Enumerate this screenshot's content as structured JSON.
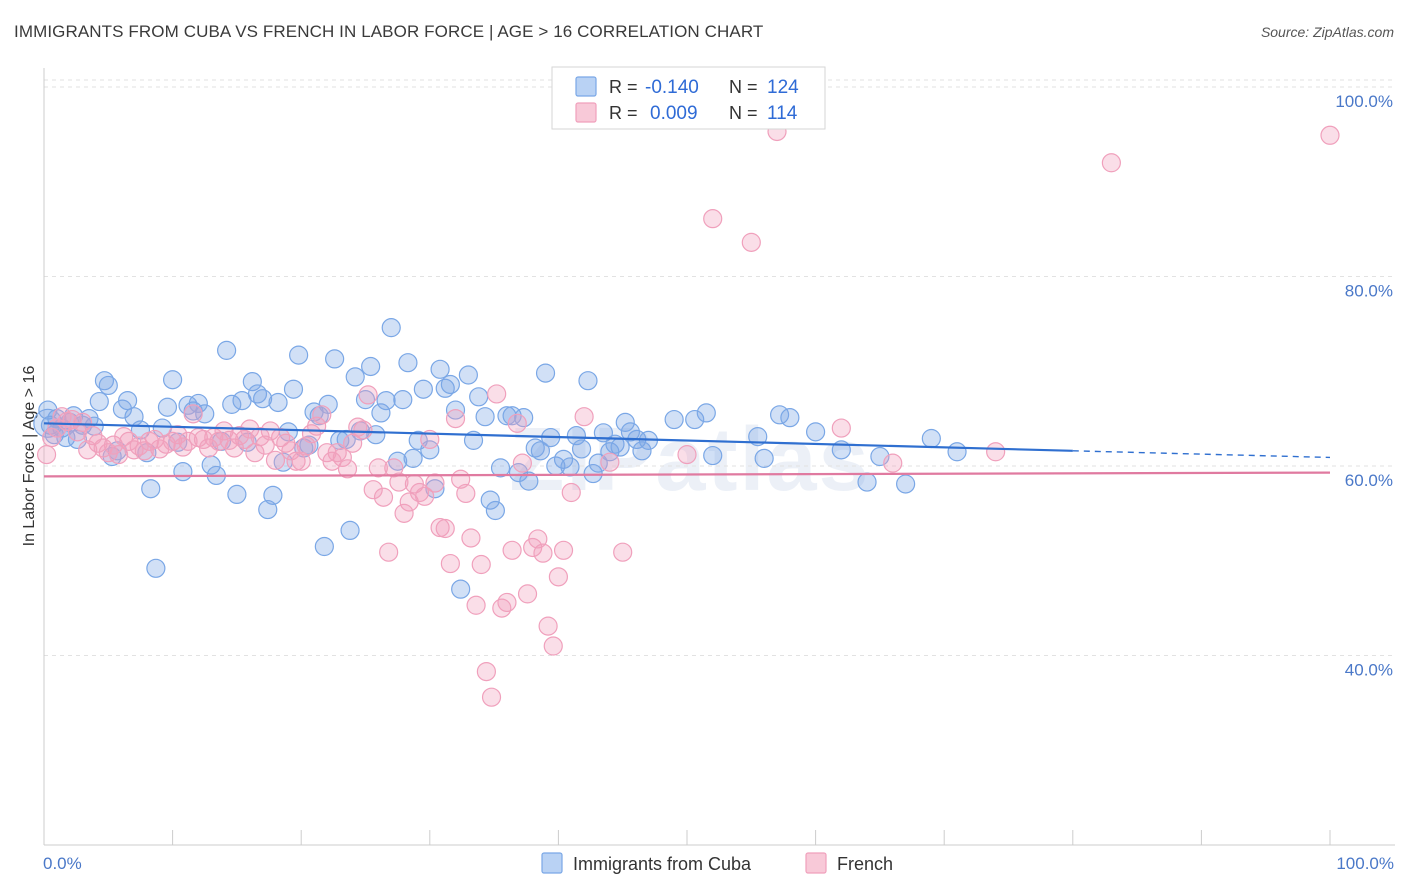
{
  "title": "IMMIGRANTS FROM CUBA VS FRENCH IN LABOR FORCE | AGE > 16 CORRELATION CHART",
  "source": "Source: ZipAtlas.com",
  "watermark": "ZIPatlas",
  "chart_data": {
    "type": "scatter",
    "title": "IMMIGRANTS FROM CUBA VS FRENCH IN LABOR FORCE | AGE > 16 CORRELATION CHART",
    "xlabel": "",
    "ylabel": "In Labor Force | Age > 16",
    "xlim": [
      0,
      100
    ],
    "ylim": [
      20,
      102
    ],
    "x_tick_labels": [
      "0.0%",
      "100.0%"
    ],
    "y_ticks": [
      40,
      60,
      80,
      100
    ],
    "y_tick_labels": [
      "40.0%",
      "60.0%",
      "80.0%",
      "100.0%"
    ],
    "grid": true,
    "legend_placement": "top-center",
    "legend": [
      {
        "r_label": "R =",
        "r_value": "-0.140",
        "n_label": "N =",
        "n_value": "124"
      },
      {
        "r_label": "R =",
        "r_value": "0.009",
        "n_label": "N =",
        "n_value": "114"
      }
    ],
    "series": [
      {
        "name": "Immigrants from Cuba",
        "color": "#7aa7e6",
        "line_color": "#2f6fd0",
        "trend": {
          "x": [
            0,
            80,
            100
          ],
          "y": [
            64.5,
            61.6,
            60.9
          ],
          "solid_until": 80
        },
        "points": [
          [
            0.3,
            65.9
          ],
          [
            0.5,
            64.3
          ],
          [
            0.8,
            63.3
          ],
          [
            1.0,
            65.0
          ],
          [
            1.4,
            64.0
          ],
          [
            1.7,
            63.0
          ],
          [
            2.0,
            64.6
          ],
          [
            2.3,
            65.3
          ],
          [
            2.6,
            62.8
          ],
          [
            3.0,
            64.3
          ],
          [
            3.5,
            65.0
          ],
          [
            3.9,
            64.2
          ],
          [
            4.3,
            66.8
          ],
          [
            4.7,
            69.0
          ],
          [
            5.0,
            68.5
          ],
          [
            5.3,
            61.0
          ],
          [
            5.7,
            61.6
          ],
          [
            6.1,
            66.0
          ],
          [
            6.5,
            66.9
          ],
          [
            7.0,
            65.2
          ],
          [
            7.5,
            63.8
          ],
          [
            8.0,
            61.4
          ],
          [
            8.3,
            57.6
          ],
          [
            8.7,
            49.2
          ],
          [
            9.2,
            64.0
          ],
          [
            9.6,
            66.2
          ],
          [
            10.0,
            69.1
          ],
          [
            10.4,
            62.5
          ],
          [
            10.8,
            59.4
          ],
          [
            11.2,
            66.4
          ],
          [
            11.6,
            65.8
          ],
          [
            12.0,
            66.6
          ],
          [
            12.5,
            65.5
          ],
          [
            13.0,
            60.1
          ],
          [
            13.4,
            59.0
          ],
          [
            13.8,
            62.6
          ],
          [
            14.2,
            72.2
          ],
          [
            14.6,
            66.5
          ],
          [
            15.0,
            57.0
          ],
          [
            15.4,
            66.9
          ],
          [
            15.8,
            62.5
          ],
          [
            16.2,
            68.9
          ],
          [
            16.6,
            67.6
          ],
          [
            17.0,
            67.1
          ],
          [
            17.4,
            55.4
          ],
          [
            17.8,
            56.9
          ],
          [
            18.2,
            66.7
          ],
          [
            18.6,
            60.4
          ],
          [
            19.0,
            63.6
          ],
          [
            19.4,
            68.1
          ],
          [
            19.8,
            71.7
          ],
          [
            20.2,
            61.9
          ],
          [
            20.6,
            62.2
          ],
          [
            21.0,
            65.7
          ],
          [
            21.4,
            65.3
          ],
          [
            21.8,
            51.5
          ],
          [
            22.1,
            66.5
          ],
          [
            22.6,
            71.3
          ],
          [
            23.0,
            62.7
          ],
          [
            23.5,
            62.8
          ],
          [
            23.8,
            53.2
          ],
          [
            24.2,
            69.4
          ],
          [
            24.6,
            63.7
          ],
          [
            25.0,
            67.0
          ],
          [
            25.4,
            70.5
          ],
          [
            25.8,
            63.3
          ],
          [
            26.2,
            65.6
          ],
          [
            26.6,
            66.9
          ],
          [
            27.0,
            74.6
          ],
          [
            27.5,
            60.5
          ],
          [
            27.9,
            67.0
          ],
          [
            28.3,
            70.9
          ],
          [
            28.7,
            60.8
          ],
          [
            29.1,
            62.7
          ],
          [
            29.5,
            68.1
          ],
          [
            30.0,
            61.7
          ],
          [
            30.4,
            57.6
          ],
          [
            30.8,
            70.2
          ],
          [
            31.2,
            68.2
          ],
          [
            31.6,
            68.6
          ],
          [
            32.0,
            65.9
          ],
          [
            32.4,
            47.0
          ],
          [
            33.0,
            69.6
          ],
          [
            33.4,
            62.7
          ],
          [
            33.8,
            67.3
          ],
          [
            34.3,
            65.2
          ],
          [
            34.7,
            56.4
          ],
          [
            35.1,
            55.3
          ],
          [
            35.5,
            59.8
          ],
          [
            36.0,
            65.3
          ],
          [
            36.4,
            65.3
          ],
          [
            36.9,
            59.3
          ],
          [
            37.3,
            65.1
          ],
          [
            37.7,
            58.4
          ],
          [
            38.2,
            61.9
          ],
          [
            38.6,
            61.6
          ],
          [
            39.0,
            69.8
          ],
          [
            39.4,
            63.0
          ],
          [
            39.8,
            60.0
          ],
          [
            40.4,
            60.7
          ],
          [
            40.9,
            59.9
          ],
          [
            41.4,
            63.2
          ],
          [
            41.8,
            61.8
          ],
          [
            42.3,
            69.0
          ],
          [
            42.7,
            59.2
          ],
          [
            43.1,
            60.3
          ],
          [
            43.5,
            63.5
          ],
          [
            44.0,
            61.5
          ],
          [
            44.4,
            62.3
          ],
          [
            44.8,
            62.0
          ],
          [
            45.2,
            64.6
          ],
          [
            45.6,
            63.6
          ],
          [
            46.1,
            62.8
          ],
          [
            46.5,
            61.6
          ],
          [
            47.0,
            62.7
          ],
          [
            49.0,
            64.9
          ],
          [
            50.6,
            64.9
          ],
          [
            51.5,
            65.6
          ],
          [
            52.0,
            61.1
          ],
          [
            55.5,
            63.1
          ],
          [
            56.0,
            60.8
          ],
          [
            57.2,
            65.4
          ],
          [
            58.0,
            65.1
          ],
          [
            60.0,
            63.6
          ],
          [
            62.0,
            61.7
          ],
          [
            64.0,
            58.3
          ],
          [
            65.0,
            61.0
          ],
          [
            67.0,
            58.1
          ],
          [
            69.0,
            62.9
          ],
          [
            71.0,
            61.5
          ]
        ]
      },
      {
        "name": "French",
        "color": "#f0a0bc",
        "line_color": "#e07aa0",
        "trend": {
          "x": [
            0,
            100
          ],
          "y": [
            58.9,
            59.3
          ],
          "solid_until": 100
        },
        "points": [
          [
            0.2,
            61.2
          ],
          [
            0.6,
            63.0
          ],
          [
            1.0,
            64.0
          ],
          [
            1.4,
            65.2
          ],
          [
            1.8,
            64.7
          ],
          [
            2.2,
            64.9
          ],
          [
            2.6,
            63.6
          ],
          [
            3.0,
            64.6
          ],
          [
            3.4,
            61.7
          ],
          [
            3.8,
            63.2
          ],
          [
            4.2,
            62.4
          ],
          [
            4.6,
            61.9
          ],
          [
            5.0,
            61.4
          ],
          [
            5.4,
            62.2
          ],
          [
            5.8,
            61.2
          ],
          [
            6.2,
            63.1
          ],
          [
            6.6,
            62.6
          ],
          [
            7.0,
            61.7
          ],
          [
            7.4,
            62.1
          ],
          [
            7.8,
            61.6
          ],
          [
            8.2,
            62.6
          ],
          [
            8.6,
            62.8
          ],
          [
            9.0,
            61.8
          ],
          [
            9.5,
            62.3
          ],
          [
            10.0,
            62.6
          ],
          [
            10.4,
            63.3
          ],
          [
            10.8,
            62.0
          ],
          [
            11.2,
            62.6
          ],
          [
            11.6,
            65.5
          ],
          [
            12.0,
            63.0
          ],
          [
            12.4,
            62.8
          ],
          [
            12.8,
            61.9
          ],
          [
            13.2,
            63.0
          ],
          [
            13.6,
            62.6
          ],
          [
            14.0,
            63.7
          ],
          [
            14.4,
            62.7
          ],
          [
            14.8,
            61.9
          ],
          [
            15.2,
            63.2
          ],
          [
            15.6,
            62.8
          ],
          [
            16.0,
            63.9
          ],
          [
            16.4,
            61.4
          ],
          [
            16.8,
            63.1
          ],
          [
            17.2,
            62.2
          ],
          [
            17.6,
            63.7
          ],
          [
            18.0,
            60.6
          ],
          [
            18.4,
            63.0
          ],
          [
            18.8,
            62.4
          ],
          [
            19.2,
            61.6
          ],
          [
            19.6,
            60.5
          ],
          [
            20.0,
            60.5
          ],
          [
            20.4,
            62.1
          ],
          [
            20.8,
            63.4
          ],
          [
            21.2,
            64.2
          ],
          [
            21.6,
            65.4
          ],
          [
            22.0,
            61.4
          ],
          [
            22.4,
            60.5
          ],
          [
            22.8,
            61.4
          ],
          [
            23.2,
            60.9
          ],
          [
            23.6,
            59.7
          ],
          [
            24.0,
            62.4
          ],
          [
            24.4,
            64.1
          ],
          [
            24.8,
            63.8
          ],
          [
            25.2,
            67.5
          ],
          [
            25.6,
            57.5
          ],
          [
            26.0,
            59.8
          ],
          [
            26.4,
            56.7
          ],
          [
            26.8,
            50.9
          ],
          [
            27.2,
            59.8
          ],
          [
            27.6,
            58.3
          ],
          [
            28.0,
            55.0
          ],
          [
            28.4,
            56.2
          ],
          [
            28.8,
            58.1
          ],
          [
            29.2,
            57.2
          ],
          [
            29.6,
            56.8
          ],
          [
            30.0,
            62.8
          ],
          [
            30.4,
            58.2
          ],
          [
            30.8,
            53.5
          ],
          [
            31.2,
            53.4
          ],
          [
            31.6,
            49.7
          ],
          [
            32.0,
            65.0
          ],
          [
            32.4,
            58.6
          ],
          [
            32.8,
            57.1
          ],
          [
            33.2,
            52.4
          ],
          [
            33.6,
            45.3
          ],
          [
            34.0,
            49.6
          ],
          [
            34.4,
            38.3
          ],
          [
            34.8,
            35.6
          ],
          [
            35.2,
            67.6
          ],
          [
            35.6,
            45.0
          ],
          [
            36.0,
            45.6
          ],
          [
            36.4,
            51.1
          ],
          [
            36.8,
            64.5
          ],
          [
            37.2,
            60.3
          ],
          [
            37.6,
            46.5
          ],
          [
            38.0,
            51.4
          ],
          [
            38.4,
            52.3
          ],
          [
            38.8,
            50.8
          ],
          [
            39.2,
            43.1
          ],
          [
            39.6,
            41.0
          ],
          [
            40.0,
            48.3
          ],
          [
            40.4,
            51.1
          ],
          [
            41.0,
            57.2
          ],
          [
            42.0,
            65.2
          ],
          [
            44.0,
            60.4
          ],
          [
            45.0,
            50.9
          ],
          [
            50.0,
            61.2
          ],
          [
            52.0,
            86.1
          ],
          [
            55.0,
            83.6
          ],
          [
            57.0,
            95.3
          ],
          [
            62.0,
            64.0
          ],
          [
            66.0,
            60.3
          ],
          [
            74.0,
            61.5
          ],
          [
            83.0,
            92.0
          ],
          [
            100.0,
            94.9
          ]
        ]
      }
    ]
  },
  "bottom_legend": [
    {
      "label": "Immigrants from Cuba"
    },
    {
      "label": "French"
    }
  ]
}
